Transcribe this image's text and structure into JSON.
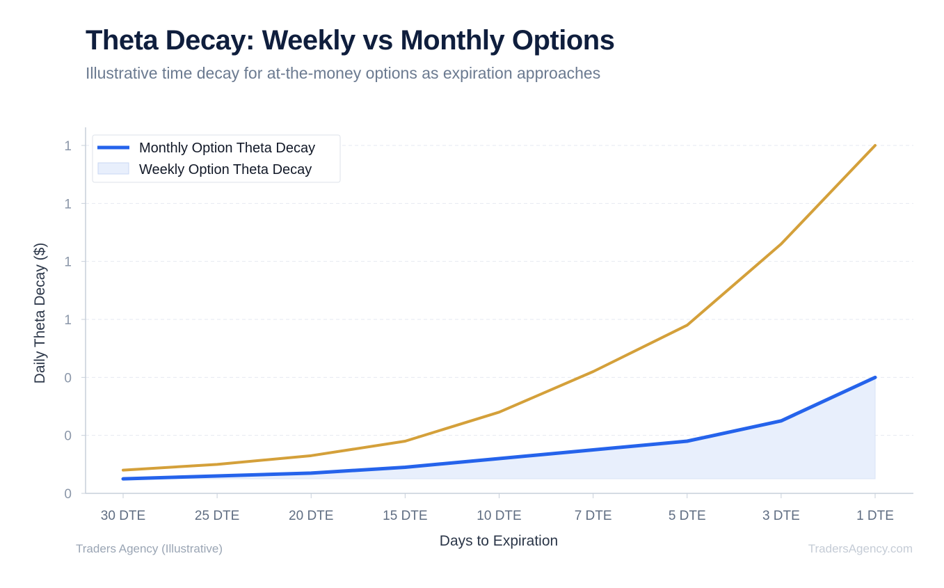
{
  "header": {
    "title": "Theta Decay: Weekly vs Monthly Options",
    "subtitle": "Illustrative time decay for at-the-money options as expiration approaches"
  },
  "footer": {
    "source": "Traders Agency (Illustrative)",
    "watermark": "TradersAgency.com"
  },
  "colors": {
    "monthly_line": "#2563eb",
    "weekly_fill": "#e8effc",
    "weekly_line": "#d4a03a"
  },
  "chart_data": {
    "type": "line",
    "xlabel": "Days to Expiration",
    "ylabel": "Daily Theta Decay ($)",
    "categories": [
      "30 DTE",
      "25 DTE",
      "20 DTE",
      "15 DTE",
      "10 DTE",
      "7 DTE",
      "5 DTE",
      "3 DTE",
      "1 DTE"
    ],
    "y_tick_labels": [
      "0",
      "0",
      "0",
      "1",
      "1",
      "1",
      "1"
    ],
    "ylim": [
      0,
      1.2
    ],
    "grid": true,
    "legend_position": "top-left",
    "legend": [
      {
        "label": "Monthly Option Theta Decay",
        "swatch": "line"
      },
      {
        "label": "Weekly Option Theta Decay",
        "swatch": "area"
      }
    ],
    "series": [
      {
        "values": [
          0.05,
          0.06,
          0.07,
          0.09,
          0.12,
          0.15,
          0.18,
          0.25,
          0.4
        ]
      },
      {
        "values": [
          0.08,
          0.1,
          0.13,
          0.18,
          0.28,
          0.42,
          0.58,
          0.86,
          1.2
        ]
      }
    ]
  }
}
